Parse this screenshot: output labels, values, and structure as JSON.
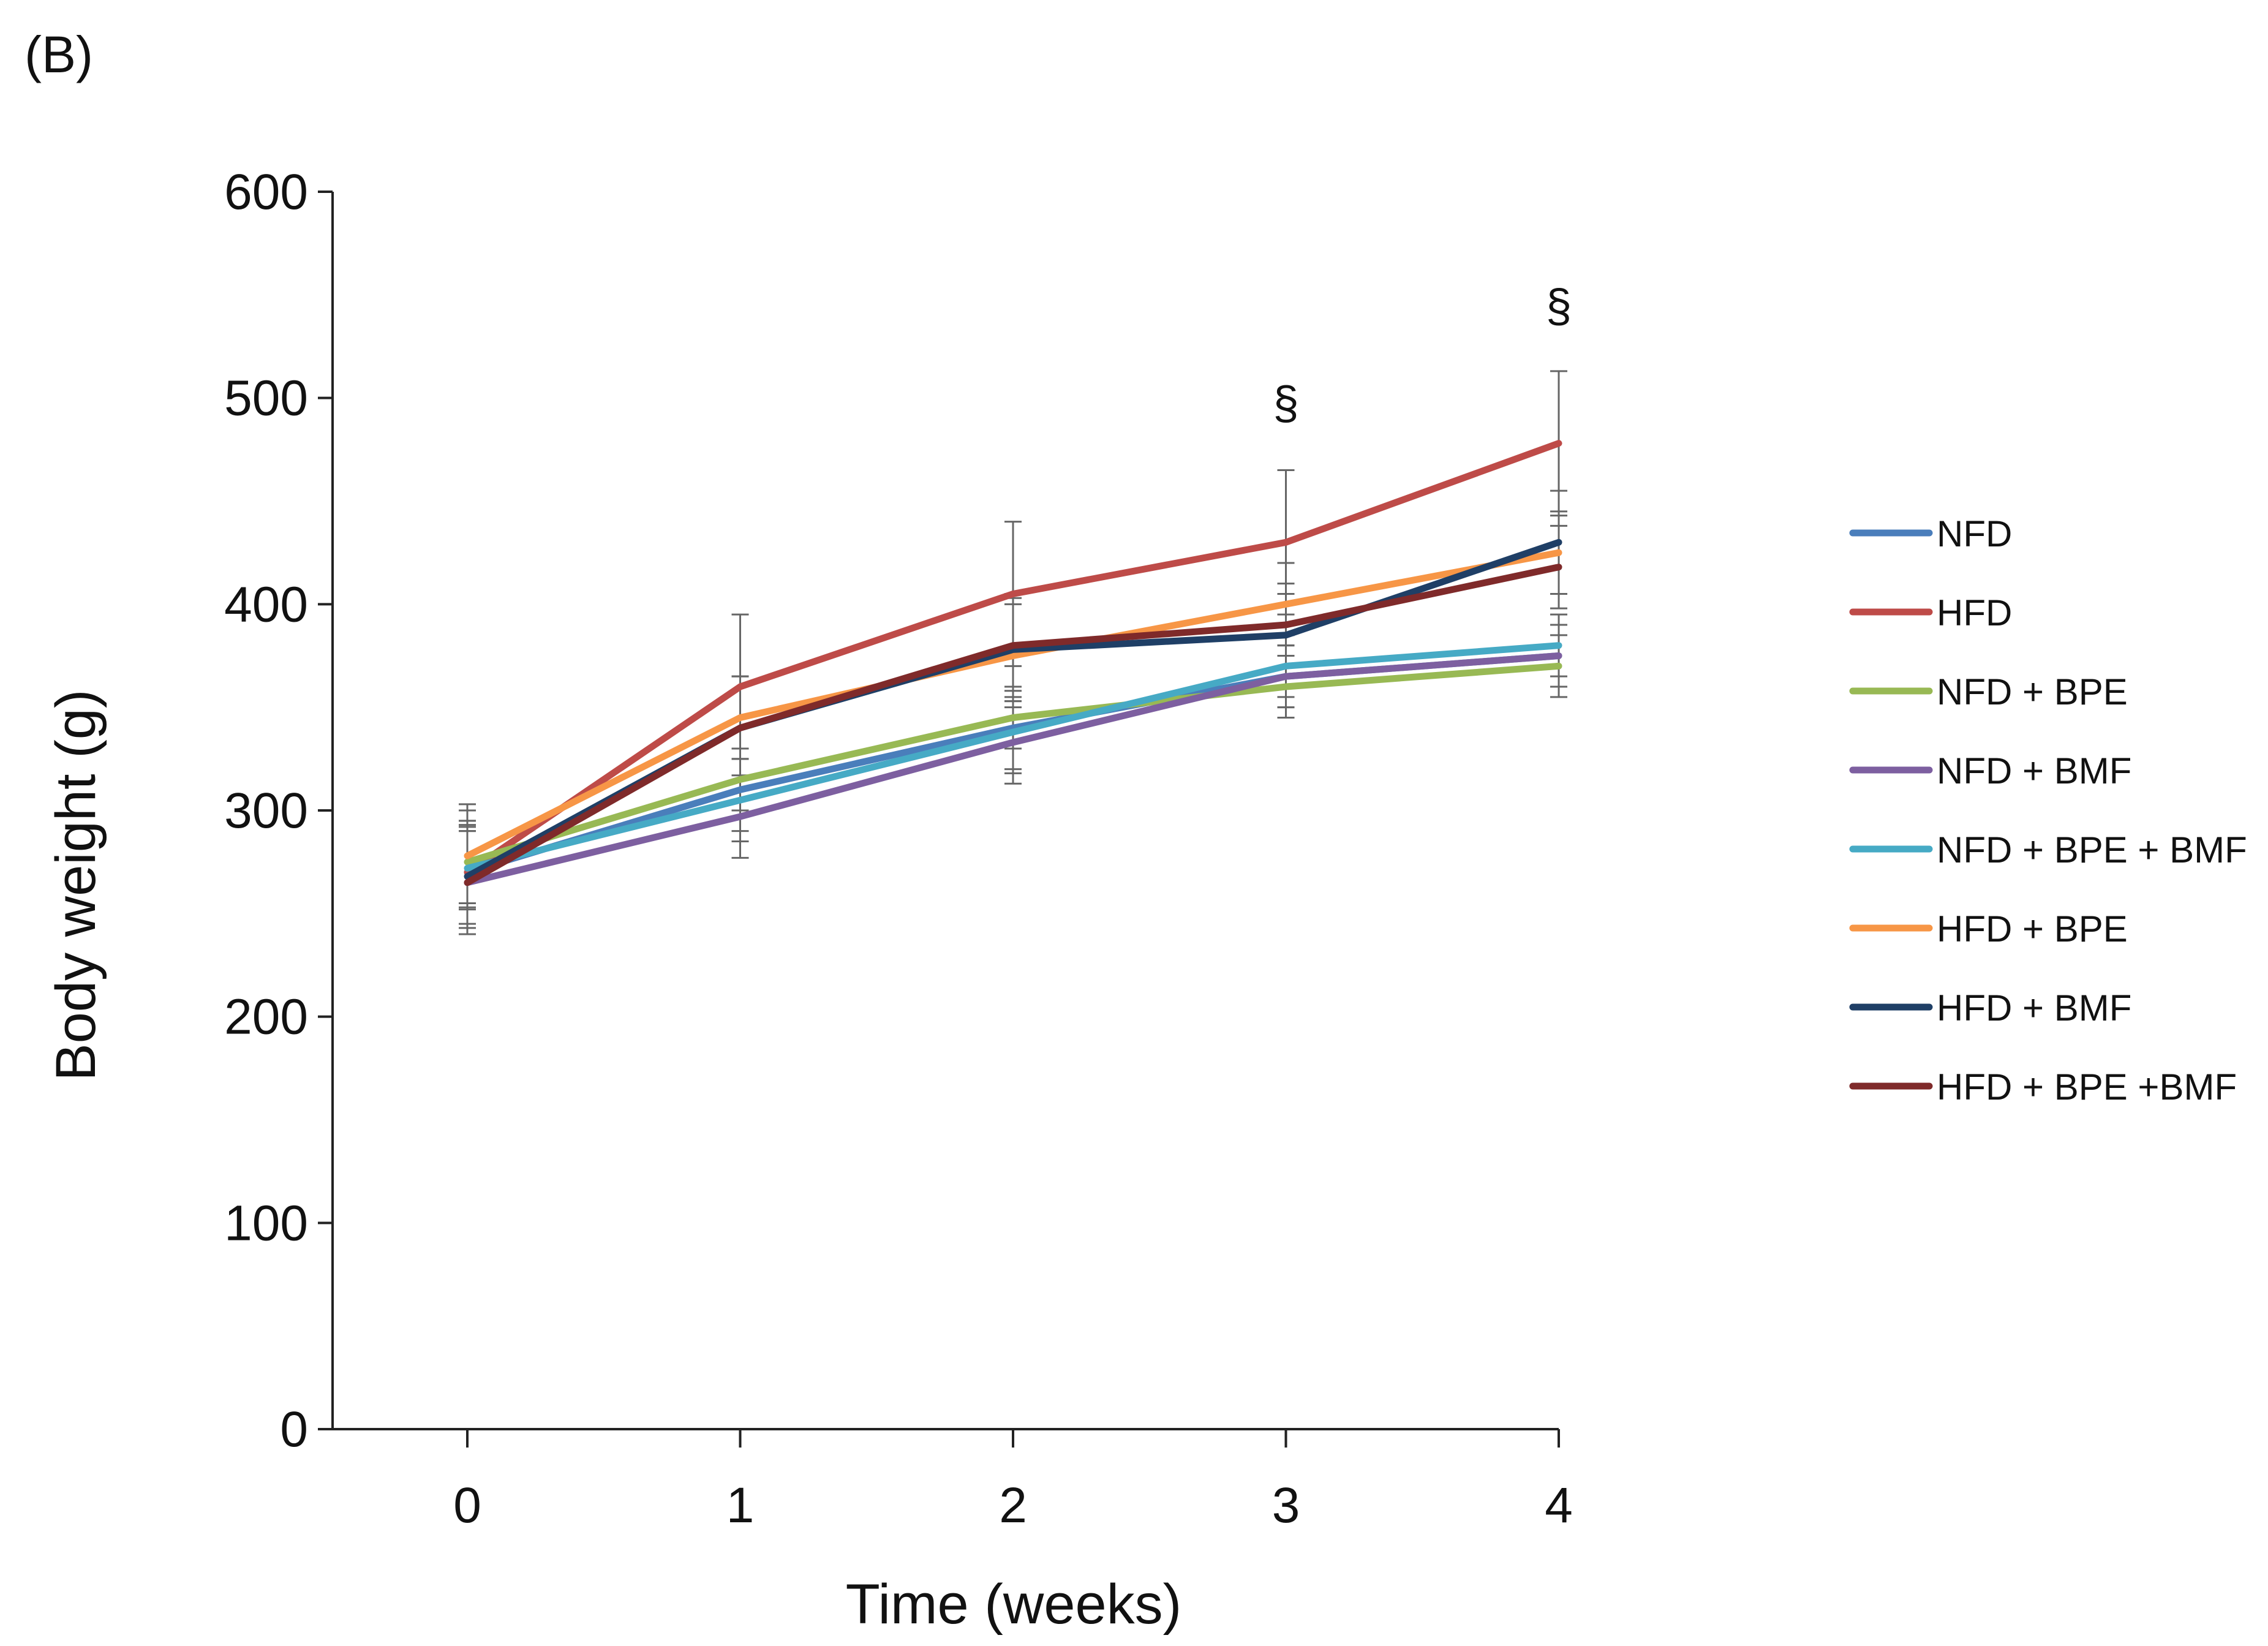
{
  "panel_label": "(B)",
  "chart_data": {
    "type": "line",
    "title": "",
    "xlabel": "Time (weeks)",
    "ylabel": "Body weight (g)",
    "x": [
      0,
      1,
      2,
      3,
      4
    ],
    "x_tick_labels": [
      "0",
      "1",
      "2",
      "3",
      "4"
    ],
    "ylim": [
      0,
      600
    ],
    "y_ticks": [
      0,
      100,
      200,
      300,
      400,
      500,
      600
    ],
    "grid": false,
    "legend_position": "right",
    "series": [
      {
        "name": "NFD",
        "color": "#4a7ebb",
        "values": [
          270,
          310,
          340,
          365,
          375
        ],
        "errors": [
          25,
          20,
          20,
          15,
          15
        ]
      },
      {
        "name": "HFD",
        "color": "#be4b48",
        "values": [
          270,
          360,
          405,
          430,
          478
        ],
        "errors": [
          30,
          35,
          35,
          35,
          35
        ]
      },
      {
        "name": "NFD + BPE",
        "color": "#98b954",
        "values": [
          275,
          315,
          345,
          360,
          370
        ],
        "errors": [
          20,
          15,
          15,
          15,
          15
        ]
      },
      {
        "name": "NFD + BMF",
        "color": "#7d5fa0",
        "values": [
          265,
          297,
          333,
          365,
          375
        ],
        "errors": [
          25,
          20,
          20,
          15,
          15
        ]
      },
      {
        "name": "NFD + BPE + BMF",
        "color": "#46aac5",
        "values": [
          272,
          305,
          338,
          370,
          380
        ],
        "errors": [
          20,
          20,
          20,
          15,
          15
        ]
      },
      {
        "name": "HFD + BPE",
        "color": "#f79646",
        "values": [
          278,
          345,
          375,
          400,
          425
        ],
        "errors": [
          25,
          20,
          25,
          20,
          20
        ]
      },
      {
        "name": "HFD + BMF",
        "color": "#1f3f66",
        "values": [
          268,
          340,
          378,
          385,
          430
        ],
        "errors": [
          25,
          25,
          25,
          20,
          25
        ]
      },
      {
        "name": "HFD + BPE +BMF",
        "color": "#7f2a2a",
        "values": [
          265,
          340,
          380,
          390,
          418
        ],
        "errors": [
          25,
          25,
          25,
          20,
          20
        ]
      }
    ],
    "annotations": [
      {
        "x": 3,
        "y": 490,
        "text": "§"
      },
      {
        "x": 4,
        "y": 537,
        "text": "§"
      }
    ]
  }
}
